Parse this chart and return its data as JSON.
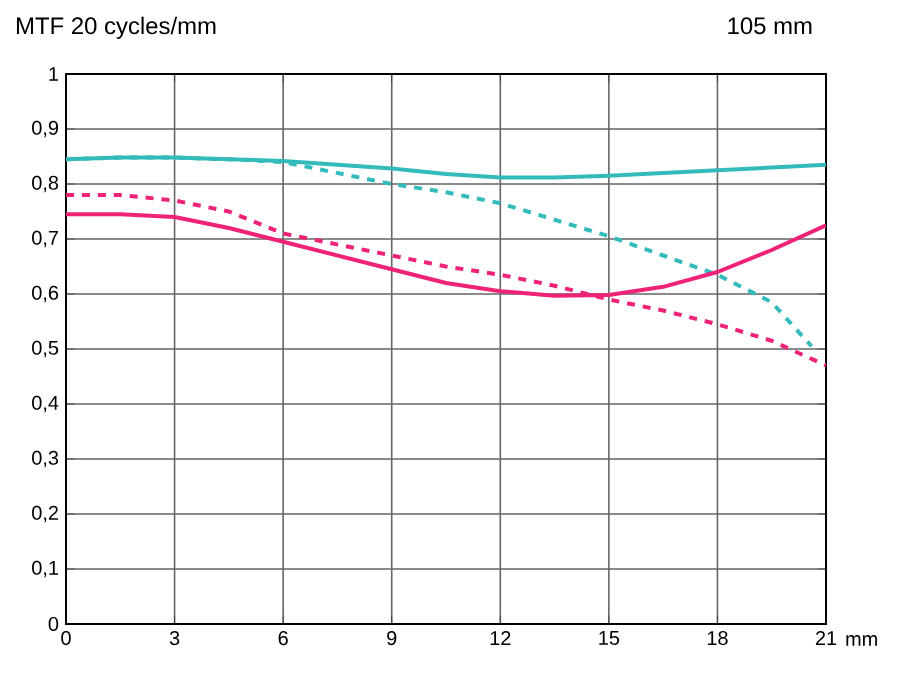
{
  "chart_data": {
    "type": "line",
    "title": "MTF 20 cycles/mm",
    "subtitle": "105 mm",
    "xlabel": "mm",
    "x": [
      0,
      1.5,
      3,
      4.5,
      6,
      7.5,
      9,
      10.5,
      12,
      13.5,
      15,
      16.5,
      18,
      19.5,
      21
    ],
    "series": [
      {
        "color": "#33bbbb",
        "line_style": "solid",
        "values": [
          0.845,
          0.848,
          0.848,
          0.845,
          0.842,
          0.835,
          0.828,
          0.818,
          0.812,
          0.812,
          0.815,
          0.82,
          0.825,
          0.83,
          0.835
        ]
      },
      {
        "color": "#33bbbb",
        "line_style": "dashed",
        "x": [
          0,
          1.5,
          3,
          4.5,
          6,
          7.5,
          9,
          10.5,
          12,
          13.5,
          15,
          16.5,
          18,
          19.5,
          20.6
        ],
        "values": [
          0.845,
          0.848,
          0.848,
          0.845,
          0.84,
          0.82,
          0.8,
          0.785,
          0.765,
          0.735,
          0.705,
          0.67,
          0.635,
          0.585,
          0.505
        ]
      },
      {
        "color": "#ee2277",
        "line_style": "solid",
        "values": [
          0.745,
          0.745,
          0.74,
          0.72,
          0.695,
          0.67,
          0.645,
          0.62,
          0.605,
          0.597,
          0.598,
          0.613,
          0.64,
          0.68,
          0.725
        ]
      },
      {
        "color": "#ee2277",
        "line_style": "dashed",
        "values": [
          0.78,
          0.78,
          0.77,
          0.75,
          0.71,
          0.69,
          0.67,
          0.65,
          0.635,
          0.615,
          0.59,
          0.57,
          0.545,
          0.515,
          0.47
        ]
      }
    ],
    "xlim": [
      0,
      21
    ],
    "xticks": [
      0,
      3,
      6,
      9,
      12,
      15,
      18,
      21
    ],
    "ylim": [
      0,
      1
    ],
    "yticks": [
      0,
      {
        "value": 0.1,
        "label": "0,1"
      },
      {
        "value": 0.2,
        "label": "0,2"
      },
      {
        "value": 0.3,
        "label": "0,3"
      },
      {
        "value": 0.4,
        "label": "0,4"
      },
      {
        "value": 0.5,
        "label": "0,5"
      },
      {
        "value": 0.6,
        "label": "0,6"
      },
      {
        "value": 0.7,
        "label": "0,7"
      },
      {
        "value": 0.8,
        "label": "0,8"
      },
      {
        "value": 0.9,
        "label": "0,9"
      },
      1
    ],
    "grid": true,
    "marker": "none"
  }
}
